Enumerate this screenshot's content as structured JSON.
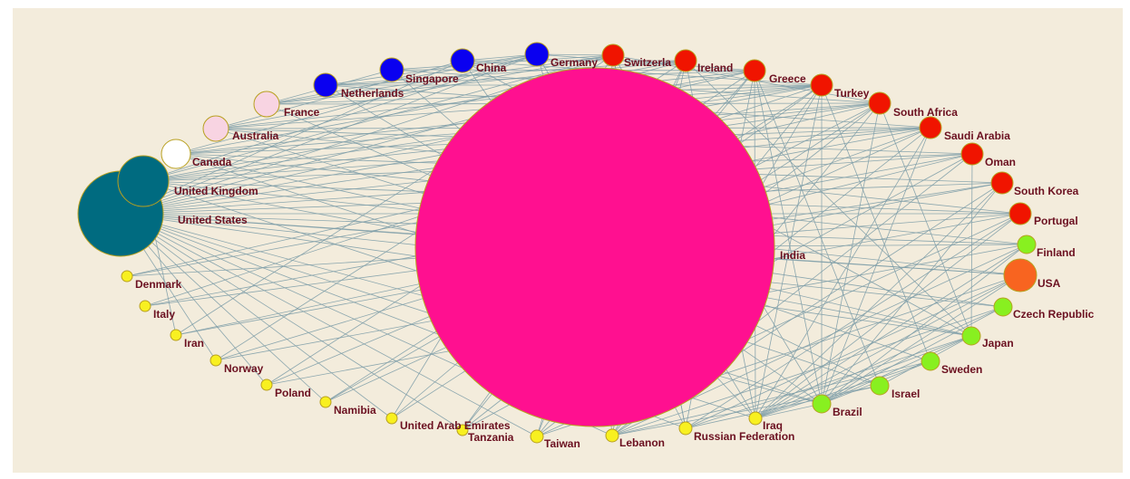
{
  "colors": {
    "background": "#f3ecdc",
    "edge": "#7f9fa8",
    "label": "#6b1020",
    "teal": "#006b80",
    "white": "#ffffff",
    "pink_light": "#f8d4e2",
    "blue": "#0a00f0",
    "red": "#f01400",
    "green": "#88f020",
    "orange": "#f86420",
    "yellow": "#f8f020",
    "magenta": "#ff1090"
  },
  "nodes": [
    {
      "id": "united-states",
      "label": "United States",
      "group": "teal"
    },
    {
      "id": "united-kingdom",
      "label": "United Kingdom",
      "group": "teal"
    },
    {
      "id": "canada",
      "label": "Canada",
      "group": "white"
    },
    {
      "id": "australia",
      "label": "Australia",
      "group": "pink_light"
    },
    {
      "id": "france",
      "label": "France",
      "group": "pink_light"
    },
    {
      "id": "netherlands",
      "label": "Netherlands",
      "group": "blue"
    },
    {
      "id": "singapore",
      "label": "Singapore",
      "group": "blue"
    },
    {
      "id": "china",
      "label": "China",
      "group": "blue"
    },
    {
      "id": "germany",
      "label": "Germany",
      "group": "blue"
    },
    {
      "id": "switzerland",
      "label": "Switzerla",
      "group": "red"
    },
    {
      "id": "ireland",
      "label": "Ireland",
      "group": "red"
    },
    {
      "id": "greece",
      "label": "Greece",
      "group": "red"
    },
    {
      "id": "turkey",
      "label": "Turkey",
      "group": "red"
    },
    {
      "id": "south-africa",
      "label": "South Africa",
      "group": "red"
    },
    {
      "id": "saudi-arabia",
      "label": "Saudi Arabia",
      "group": "red"
    },
    {
      "id": "oman",
      "label": "Oman",
      "group": "red"
    },
    {
      "id": "south-korea",
      "label": "South Korea",
      "group": "red"
    },
    {
      "id": "portugal",
      "label": "Portugal",
      "group": "red"
    },
    {
      "id": "finland",
      "label": "Finland",
      "group": "green"
    },
    {
      "id": "usa",
      "label": "USA",
      "group": "orange"
    },
    {
      "id": "czech-republic",
      "label": "Czech Republic",
      "group": "green"
    },
    {
      "id": "japan",
      "label": "Japan",
      "group": "green"
    },
    {
      "id": "sweden",
      "label": "Sweden",
      "group": "green"
    },
    {
      "id": "israel",
      "label": "Israel",
      "group": "green"
    },
    {
      "id": "brazil",
      "label": "Brazil",
      "group": "green"
    },
    {
      "id": "iraq",
      "label": "Iraq",
      "group": "yellow"
    },
    {
      "id": "russian-federation",
      "label": "Russian Federation",
      "group": "yellow"
    },
    {
      "id": "lebanon",
      "label": "Lebanon",
      "group": "yellow"
    },
    {
      "id": "taiwan",
      "label": "Taiwan",
      "group": "yellow"
    },
    {
      "id": "tanzania",
      "label": "Tanzania",
      "group": "yellow"
    },
    {
      "id": "united-arab-emirates",
      "label": "United Arab Emirates",
      "group": "yellow"
    },
    {
      "id": "namibia",
      "label": "Namibia",
      "group": "yellow"
    },
    {
      "id": "poland",
      "label": "Poland",
      "group": "yellow"
    },
    {
      "id": "norway",
      "label": "Norway",
      "group": "yellow"
    },
    {
      "id": "iran",
      "label": "Iran",
      "group": "yellow"
    },
    {
      "id": "italy",
      "label": "Italy",
      "group": "yellow"
    },
    {
      "id": "denmark",
      "label": "Denmark",
      "group": "yellow"
    },
    {
      "id": "india",
      "label": "India",
      "group": "magenta"
    }
  ]
}
